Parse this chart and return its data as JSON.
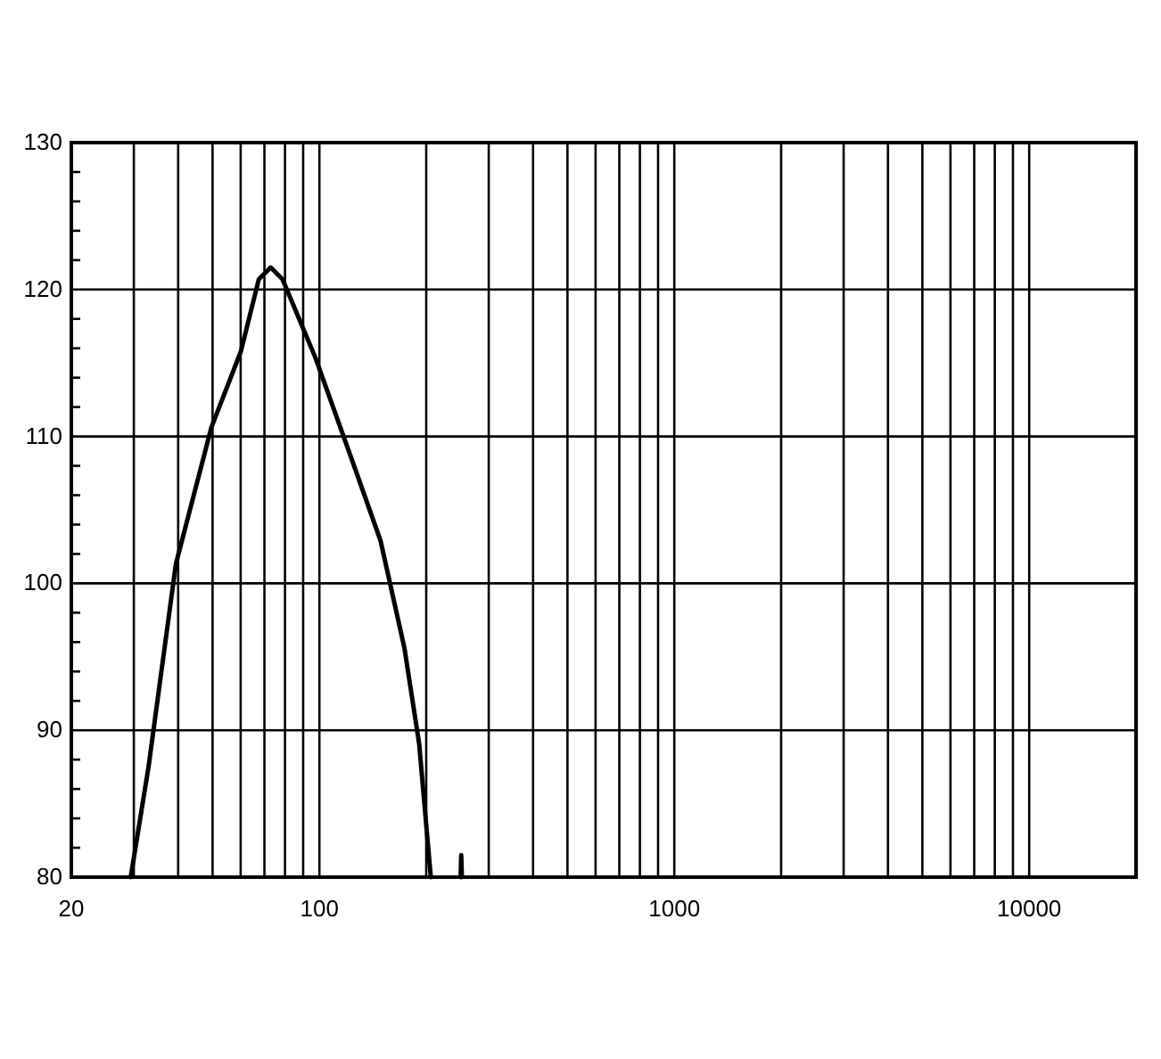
{
  "chart_data": {
    "type": "line",
    "log": "x",
    "grid": true,
    "marker": "none",
    "line_style": "solid",
    "xlim": [
      20,
      20000
    ],
    "xticks": [
      {
        "value": 20,
        "label": "20"
      },
      {
        "value": 30,
        "label": null
      },
      {
        "value": 40,
        "label": null
      },
      {
        "value": 50,
        "label": null
      },
      {
        "value": 60,
        "label": null
      },
      {
        "value": 70,
        "label": null
      },
      {
        "value": 80,
        "label": null
      },
      {
        "value": 90,
        "label": null
      },
      100,
      {
        "value": 200,
        "label": null
      },
      {
        "value": 300,
        "label": null
      },
      {
        "value": 400,
        "label": null
      },
      {
        "value": 500,
        "label": null
      },
      {
        "value": 600,
        "label": null
      },
      {
        "value": 700,
        "label": null
      },
      {
        "value": 800,
        "label": null
      },
      {
        "value": 900,
        "label": null
      },
      1000,
      {
        "value": 2000,
        "label": null
      },
      {
        "value": 3000,
        "label": null
      },
      {
        "value": 4000,
        "label": null
      },
      {
        "value": 5000,
        "label": null
      },
      {
        "value": 6000,
        "label": null
      },
      {
        "value": 7000,
        "label": null
      },
      {
        "value": 8000,
        "label": null
      },
      {
        "value": 9000,
        "label": null
      },
      10000
    ],
    "ylim": [
      80,
      130
    ],
    "yticks": [
      80,
      {
        "value": 82,
        "label": null
      },
      {
        "value": 84,
        "label": null
      },
      {
        "value": 86,
        "label": null
      },
      {
        "value": 88,
        "label": null
      },
      90,
      {
        "value": 92,
        "label": null
      },
      {
        "value": 94,
        "label": null
      },
      {
        "value": 96,
        "label": null
      },
      {
        "value": 98,
        "label": null
      },
      100,
      {
        "value": 102,
        "label": null
      },
      {
        "value": 104,
        "label": null
      },
      {
        "value": 106,
        "label": null
      },
      {
        "value": 108,
        "label": null
      },
      110,
      {
        "value": 112,
        "label": null
      },
      {
        "value": 114,
        "label": null
      },
      {
        "value": 116,
        "label": null
      },
      {
        "value": 118,
        "label": null
      },
      120,
      {
        "value": 122,
        "label": null
      },
      {
        "value": 124,
        "label": null
      },
      {
        "value": 126,
        "label": null
      },
      {
        "value": 128,
        "label": null
      },
      130
    ],
    "series": [
      {
        "color": "#000000",
        "x": [
          29.4,
          33,
          39.4,
          49.6,
          60.1,
          67.5,
          72.9,
          78.7,
          97.3,
          122.7,
          148.7,
          173.6,
          191,
          206,
          248,
          250,
          251,
          252
        ],
        "values": [
          80,
          87.5,
          101.3,
          110.6,
          115.8,
          120.7,
          121.5,
          120.7,
          115.4,
          108.6,
          102.9,
          95.6,
          89.1,
          80,
          null,
          80,
          81.5,
          80
        ]
      }
    ]
  }
}
